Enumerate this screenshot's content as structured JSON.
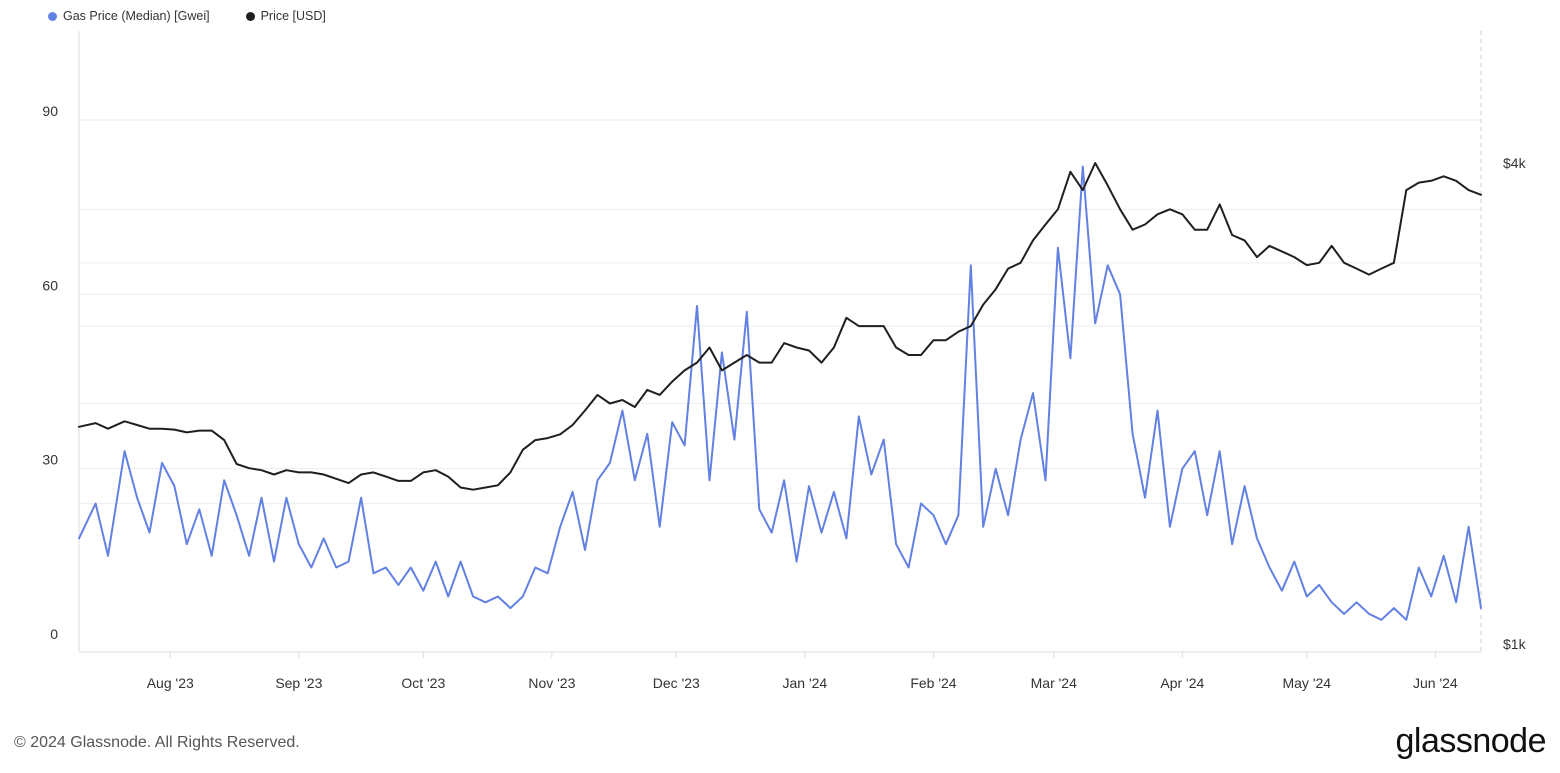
{
  "legend": {
    "gas_label": "Gas Price (Median) [Gwei]",
    "price_label": "Price [USD]"
  },
  "colors": {
    "gas": "#6281e3",
    "price": "#1f1f1f",
    "grid": "#eceef2",
    "axis": "#d9dde3"
  },
  "footer": {
    "copyright": "© 2024 Glassnode. All Rights Reserved.",
    "brand": "glassnode"
  },
  "chart_data": {
    "type": "line",
    "title": "",
    "x_ticks": [
      "Aug '23",
      "Sep '23",
      "Oct '23",
      "Nov '23",
      "Dec '23",
      "Jan '24",
      "Feb '24",
      "Mar '24",
      "Apr '24",
      "May '24",
      "Jun '24"
    ],
    "x_range": [
      "2023-07-10",
      "2024-06-12"
    ],
    "y_left": {
      "ticks": [
        "0",
        "30",
        "60",
        "90"
      ],
      "range": [
        0,
        90
      ]
    },
    "y_right": {
      "ticks": [
        "$1k",
        "$4k"
      ],
      "scale": "log",
      "range_usd": [
        1000,
        4000
      ]
    },
    "grid": true,
    "legend_position": "top-left",
    "series": [
      {
        "name": "Gas Price (Median) [Gwei]",
        "axis": "left",
        "x": [
          "2023-07-10",
          "2023-07-14",
          "2023-07-17",
          "2023-07-21",
          "2023-07-24",
          "2023-07-27",
          "2023-07-30",
          "2023-08-02",
          "2023-08-05",
          "2023-08-08",
          "2023-08-11",
          "2023-08-14",
          "2023-08-17",
          "2023-08-20",
          "2023-08-23",
          "2023-08-26",
          "2023-08-29",
          "2023-09-01",
          "2023-09-04",
          "2023-09-07",
          "2023-09-10",
          "2023-09-13",
          "2023-09-16",
          "2023-09-19",
          "2023-09-22",
          "2023-09-25",
          "2023-09-28",
          "2023-10-01",
          "2023-10-04",
          "2023-10-07",
          "2023-10-10",
          "2023-10-13",
          "2023-10-16",
          "2023-10-19",
          "2023-10-22",
          "2023-10-25",
          "2023-10-28",
          "2023-10-31",
          "2023-11-03",
          "2023-11-06",
          "2023-11-09",
          "2023-11-12",
          "2023-11-15",
          "2023-11-18",
          "2023-11-21",
          "2023-11-24",
          "2023-11-27",
          "2023-11-30",
          "2023-12-03",
          "2023-12-06",
          "2023-12-09",
          "2023-12-12",
          "2023-12-15",
          "2023-12-18",
          "2023-12-21",
          "2023-12-24",
          "2023-12-27",
          "2023-12-30",
          "2024-01-02",
          "2024-01-05",
          "2024-01-08",
          "2024-01-11",
          "2024-01-14",
          "2024-01-17",
          "2024-01-20",
          "2024-01-23",
          "2024-01-26",
          "2024-01-29",
          "2024-02-01",
          "2024-02-04",
          "2024-02-07",
          "2024-02-10",
          "2024-02-13",
          "2024-02-16",
          "2024-02-19",
          "2024-02-22",
          "2024-02-25",
          "2024-02-28",
          "2024-03-02",
          "2024-03-05",
          "2024-03-08",
          "2024-03-11",
          "2024-03-14",
          "2024-03-17",
          "2024-03-20",
          "2024-03-23",
          "2024-03-26",
          "2024-03-29",
          "2024-04-01",
          "2024-04-04",
          "2024-04-07",
          "2024-04-10",
          "2024-04-13",
          "2024-04-16",
          "2024-04-19",
          "2024-04-22",
          "2024-04-25",
          "2024-04-28",
          "2024-05-01",
          "2024-05-04",
          "2024-05-07",
          "2024-05-10",
          "2024-05-13",
          "2024-05-16",
          "2024-05-19",
          "2024-05-22",
          "2024-05-25",
          "2024-05-28",
          "2024-05-31",
          "2024-06-03",
          "2024-06-06",
          "2024-06-09",
          "2024-06-12"
        ],
        "values": [
          18,
          24,
          15,
          33,
          25,
          19,
          31,
          27,
          17,
          23,
          15,
          28,
          22,
          15,
          25,
          14,
          25,
          17,
          13,
          18,
          13,
          14,
          25,
          12,
          13,
          10,
          13,
          9,
          14,
          8,
          14,
          8,
          7,
          8,
          6,
          8,
          13,
          12,
          20,
          26,
          16,
          28,
          31,
          40,
          28,
          36,
          20,
          38,
          34,
          58,
          28,
          50,
          35,
          57,
          23,
          19,
          28,
          14,
          27,
          19,
          26,
          18,
          39,
          29,
          35,
          17,
          13,
          24,
          22,
          17,
          22,
          65,
          20,
          30,
          22,
          35,
          43,
          28,
          68,
          49,
          82,
          55,
          65,
          60,
          36,
          25,
          40,
          20,
          30,
          33,
          22,
          33,
          17,
          27,
          18,
          13,
          9,
          14,
          8,
          10,
          7,
          5,
          7,
          5,
          4,
          6,
          4,
          13,
          8,
          15,
          7,
          20,
          6
        ],
        "color": "#6281e3"
      },
      {
        "name": "Price [USD]",
        "axis": "right",
        "x": [
          "2023-07-10",
          "2023-07-14",
          "2023-07-17",
          "2023-07-21",
          "2023-07-24",
          "2023-07-27",
          "2023-07-30",
          "2023-08-02",
          "2023-08-05",
          "2023-08-08",
          "2023-08-11",
          "2023-08-14",
          "2023-08-17",
          "2023-08-20",
          "2023-08-23",
          "2023-08-26",
          "2023-08-29",
          "2023-09-01",
          "2023-09-04",
          "2023-09-07",
          "2023-09-10",
          "2023-09-13",
          "2023-09-16",
          "2023-09-19",
          "2023-09-22",
          "2023-09-25",
          "2023-09-28",
          "2023-10-01",
          "2023-10-04",
          "2023-10-07",
          "2023-10-10",
          "2023-10-13",
          "2023-10-16",
          "2023-10-19",
          "2023-10-22",
          "2023-10-25",
          "2023-10-28",
          "2023-10-31",
          "2023-11-03",
          "2023-11-06",
          "2023-11-09",
          "2023-11-12",
          "2023-11-15",
          "2023-11-18",
          "2023-11-21",
          "2023-11-24",
          "2023-11-27",
          "2023-11-30",
          "2023-12-03",
          "2023-12-06",
          "2023-12-09",
          "2023-12-12",
          "2023-12-15",
          "2023-12-18",
          "2023-12-21",
          "2023-12-24",
          "2023-12-27",
          "2023-12-30",
          "2024-01-02",
          "2024-01-05",
          "2024-01-08",
          "2024-01-11",
          "2024-01-14",
          "2024-01-17",
          "2024-01-20",
          "2024-01-23",
          "2024-01-26",
          "2024-01-29",
          "2024-02-01",
          "2024-02-04",
          "2024-02-07",
          "2024-02-10",
          "2024-02-13",
          "2024-02-16",
          "2024-02-19",
          "2024-02-22",
          "2024-02-25",
          "2024-02-28",
          "2024-03-02",
          "2024-03-05",
          "2024-03-08",
          "2024-03-11",
          "2024-03-14",
          "2024-03-17",
          "2024-03-20",
          "2024-03-23",
          "2024-03-26",
          "2024-03-29",
          "2024-04-01",
          "2024-04-04",
          "2024-04-07",
          "2024-04-10",
          "2024-04-13",
          "2024-04-16",
          "2024-04-19",
          "2024-04-22",
          "2024-04-25",
          "2024-04-28",
          "2024-05-01",
          "2024-05-04",
          "2024-05-07",
          "2024-05-10",
          "2024-05-13",
          "2024-05-16",
          "2024-05-19",
          "2024-05-22",
          "2024-05-25",
          "2024-05-28",
          "2024-05-31",
          "2024-06-03",
          "2024-06-06",
          "2024-06-09",
          "2024-06-12"
        ],
        "values": [
          1870,
          1890,
          1860,
          1900,
          1880,
          1860,
          1860,
          1855,
          1840,
          1850,
          1850,
          1800,
          1680,
          1660,
          1650,
          1630,
          1650,
          1640,
          1640,
          1630,
          1610,
          1590,
          1630,
          1640,
          1620,
          1600,
          1600,
          1640,
          1650,
          1620,
          1570,
          1560,
          1570,
          1580,
          1640,
          1750,
          1800,
          1810,
          1830,
          1880,
          1960,
          2050,
          2000,
          2020,
          1980,
          2080,
          2050,
          2130,
          2200,
          2250,
          2350,
          2200,
          2250,
          2300,
          2250,
          2250,
          2380,
          2350,
          2330,
          2250,
          2350,
          2560,
          2500,
          2500,
          2500,
          2350,
          2300,
          2300,
          2400,
          2400,
          2460,
          2500,
          2660,
          2780,
          2950,
          3000,
          3200,
          3350,
          3500,
          3900,
          3700,
          4000,
          3750,
          3500,
          3300,
          3350,
          3450,
          3500,
          3450,
          3300,
          3300,
          3550,
          3250,
          3200,
          3050,
          3150,
          3100,
          3050,
          2980,
          3000,
          3150,
          3000,
          2950,
          2900,
          2950,
          3000,
          3700,
          3780,
          3800,
          3850,
          3800,
          3700,
          3650
        ],
        "color": "#1f1f1f"
      }
    ]
  }
}
